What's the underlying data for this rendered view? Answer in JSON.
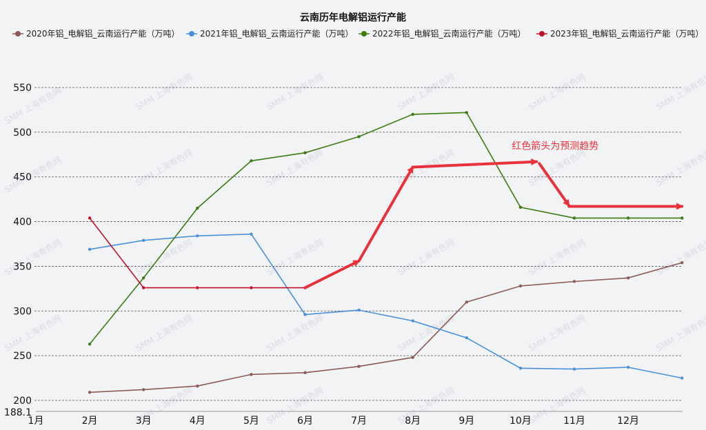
{
  "chart_data": {
    "type": "line",
    "title": "云南历年电解铝运行产能",
    "categories": [
      "1月",
      "2月",
      "3月",
      "4月",
      "5月",
      "6月",
      "7月",
      "8月",
      "9月",
      "10月",
      "11月",
      "12月"
    ],
    "ylim": [
      188.1,
      560
    ],
    "yticks": [
      550,
      500,
      450,
      400,
      350,
      300,
      250,
      200
    ],
    "ymin_label": "188.1",
    "grid": true,
    "legend_position": "top",
    "series": [
      {
        "name": "2020年铝_电解铝_云南运行产能（万吨）",
        "color": "#8c5a57",
        "x": [
          2,
          3,
          4,
          5,
          6,
          7,
          8,
          9,
          10,
          11,
          12,
          13
        ],
        "values": [
          209,
          212,
          216,
          229,
          231,
          238,
          248,
          310,
          328,
          333,
          337,
          354
        ]
      },
      {
        "name": "2021年铝_电解铝_云南运行产能（万吨）",
        "color": "#4a90d9",
        "x": [
          2,
          3,
          4,
          5,
          6,
          7,
          8,
          9,
          10,
          11,
          12,
          13
        ],
        "values": [
          369,
          379,
          384,
          386,
          296,
          301,
          289,
          270,
          236,
          235,
          237,
          225
        ]
      },
      {
        "name": "2022年铝_电解铝_云南运行产能（万吨）",
        "color": "#3e7a12",
        "x": [
          2,
          3,
          4,
          5,
          6,
          7,
          8,
          9,
          10,
          11,
          12,
          13
        ],
        "values": [
          263,
          337,
          415,
          468,
          477,
          495,
          520,
          522,
          416,
          404,
          404,
          404
        ]
      },
      {
        "name": "2023年铝_电解铝_云南运行产能（万吨）",
        "color": "#c0102a",
        "x": [
          2,
          3,
          4,
          5,
          6
        ],
        "values": [
          404,
          326,
          326,
          326,
          326
        ]
      }
    ],
    "forecast_arrows": {
      "color": "#e8313a",
      "segments": [
        {
          "from": [
            6,
            326
          ],
          "to": [
            7,
            356
          ]
        },
        {
          "from": [
            7.0,
            356
          ],
          "to": [
            8,
            461
          ]
        },
        {
          "from": [
            8,
            461
          ],
          "to": [
            10.3,
            467
          ]
        },
        {
          "from": [
            10.35,
            465
          ],
          "to": [
            10.9,
            418
          ]
        },
        {
          "from": [
            10.9,
            417
          ],
          "to": [
            13,
            417
          ]
        }
      ]
    },
    "annotations": [
      {
        "text": "红色箭头为预测趋势",
        "x": 10.35,
        "y": 485
      }
    ]
  },
  "watermark": "SMM 上海有色网"
}
